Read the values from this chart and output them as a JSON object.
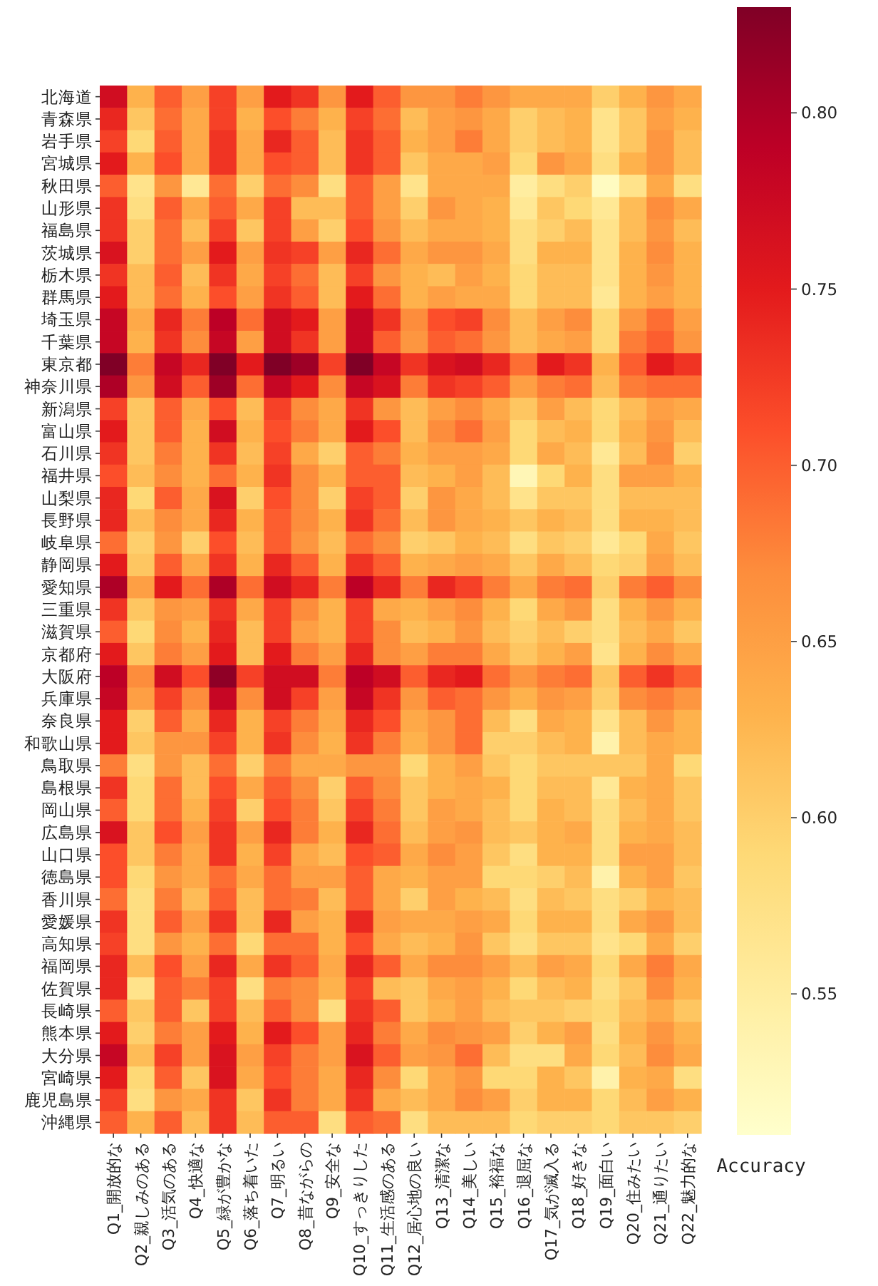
{
  "chart_data": {
    "type": "heatmap",
    "clabel": "Accuracy",
    "categories": [
      "Q1_開放的な",
      "Q2_親しみのある",
      "Q3_活気のある",
      "Q4_快適な",
      "Q5_緑が豊かな",
      "Q6_落ち着いた",
      "Q7_明るい",
      "Q8_昔ながらの",
      "Q9_安全な",
      "Q10_すっきりした",
      "Q11_生活感のある",
      "Q12_居心地の良い",
      "Q13_清潔な",
      "Q14_美しい",
      "Q15_裕福な",
      "Q16_退屈な",
      "Q17_気が滅入る",
      "Q18_好きな",
      "Q19_面白い",
      "Q20_住みたい",
      "Q21_通りたい",
      "Q22_魅力的な"
    ],
    "y_categories": [
      "北海道",
      "青森県",
      "岩手県",
      "宮城県",
      "秋田県",
      "山形県",
      "福島県",
      "茨城県",
      "栃木県",
      "群馬県",
      "埼玉県",
      "千葉県",
      "東京都",
      "神奈川県",
      "新潟県",
      "富山県",
      "石川県",
      "福井県",
      "山梨県",
      "長野県",
      "岐阜県",
      "静岡県",
      "愛知県",
      "三重県",
      "滋賀県",
      "京都府",
      "大阪府",
      "兵庫県",
      "奈良県",
      "和歌山県",
      "鳥取県",
      "島根県",
      "岡山県",
      "広島県",
      "山口県",
      "徳島県",
      "香川県",
      "愛媛県",
      "高知県",
      "福岡県",
      "佐賀県",
      "長崎県",
      "熊本県",
      "大分県",
      "宮崎県",
      "鹿児島県",
      "沖縄県"
    ],
    "cells": [
      [
        0.77,
        0.63,
        0.7,
        0.65,
        0.72,
        0.65,
        0.75,
        0.73,
        0.66,
        0.75,
        0.7,
        0.66,
        0.66,
        0.68,
        0.66,
        0.64,
        0.64,
        0.64,
        0.6,
        0.63,
        0.66,
        0.64
      ],
      [
        0.74,
        0.61,
        0.69,
        0.64,
        0.72,
        0.63,
        0.71,
        0.68,
        0.63,
        0.72,
        0.69,
        0.62,
        0.65,
        0.66,
        0.64,
        0.6,
        0.62,
        0.63,
        0.57,
        0.61,
        0.65,
        0.63
      ],
      [
        0.72,
        0.59,
        0.7,
        0.64,
        0.73,
        0.64,
        0.74,
        0.7,
        0.62,
        0.73,
        0.7,
        0.63,
        0.65,
        0.68,
        0.64,
        0.6,
        0.62,
        0.63,
        0.57,
        0.61,
        0.66,
        0.62
      ],
      [
        0.75,
        0.63,
        0.71,
        0.64,
        0.73,
        0.64,
        0.71,
        0.7,
        0.62,
        0.73,
        0.7,
        0.61,
        0.64,
        0.64,
        0.65,
        0.59,
        0.66,
        0.64,
        0.58,
        0.63,
        0.66,
        0.62
      ],
      [
        0.7,
        0.57,
        0.66,
        0.56,
        0.69,
        0.6,
        0.69,
        0.67,
        0.58,
        0.7,
        0.65,
        0.57,
        0.64,
        0.64,
        0.64,
        0.55,
        0.58,
        0.6,
        0.52,
        0.57,
        0.64,
        0.58
      ],
      [
        0.73,
        0.58,
        0.7,
        0.64,
        0.7,
        0.64,
        0.72,
        0.62,
        0.62,
        0.7,
        0.65,
        0.6,
        0.66,
        0.64,
        0.63,
        0.56,
        0.61,
        0.59,
        0.56,
        0.62,
        0.67,
        0.64
      ],
      [
        0.73,
        0.6,
        0.69,
        0.62,
        0.72,
        0.61,
        0.72,
        0.65,
        0.6,
        0.71,
        0.66,
        0.62,
        0.64,
        0.64,
        0.63,
        0.58,
        0.6,
        0.62,
        0.57,
        0.62,
        0.66,
        0.62
      ],
      [
        0.76,
        0.6,
        0.69,
        0.65,
        0.75,
        0.65,
        0.73,
        0.72,
        0.65,
        0.74,
        0.69,
        0.64,
        0.66,
        0.66,
        0.64,
        0.58,
        0.63,
        0.63,
        0.57,
        0.63,
        0.67,
        0.63
      ],
      [
        0.73,
        0.62,
        0.7,
        0.62,
        0.73,
        0.64,
        0.72,
        0.69,
        0.62,
        0.72,
        0.66,
        0.63,
        0.62,
        0.65,
        0.63,
        0.59,
        0.62,
        0.62,
        0.57,
        0.63,
        0.66,
        0.63
      ],
      [
        0.75,
        0.62,
        0.69,
        0.63,
        0.71,
        0.65,
        0.73,
        0.7,
        0.62,
        0.75,
        0.69,
        0.63,
        0.65,
        0.64,
        0.64,
        0.59,
        0.62,
        0.62,
        0.56,
        0.63,
        0.65,
        0.63
      ],
      [
        0.78,
        0.64,
        0.74,
        0.68,
        0.79,
        0.69,
        0.77,
        0.75,
        0.65,
        0.78,
        0.73,
        0.67,
        0.71,
        0.72,
        0.67,
        0.62,
        0.65,
        0.67,
        0.59,
        0.66,
        0.69,
        0.65
      ],
      [
        0.78,
        0.63,
        0.73,
        0.67,
        0.78,
        0.65,
        0.77,
        0.73,
        0.65,
        0.78,
        0.7,
        0.66,
        0.7,
        0.69,
        0.66,
        0.62,
        0.64,
        0.65,
        0.59,
        0.68,
        0.7,
        0.66
      ],
      [
        0.83,
        0.68,
        0.78,
        0.74,
        0.83,
        0.75,
        0.83,
        0.81,
        0.72,
        0.83,
        0.78,
        0.73,
        0.76,
        0.77,
        0.74,
        0.69,
        0.75,
        0.73,
        0.63,
        0.7,
        0.75,
        0.73
      ],
      [
        0.8,
        0.66,
        0.77,
        0.7,
        0.81,
        0.69,
        0.78,
        0.75,
        0.67,
        0.78,
        0.76,
        0.68,
        0.73,
        0.72,
        0.7,
        0.65,
        0.68,
        0.69,
        0.62,
        0.68,
        0.69,
        0.69
      ],
      [
        0.72,
        0.61,
        0.7,
        0.64,
        0.71,
        0.62,
        0.72,
        0.67,
        0.64,
        0.73,
        0.66,
        0.62,
        0.65,
        0.67,
        0.64,
        0.61,
        0.65,
        0.62,
        0.59,
        0.62,
        0.65,
        0.64
      ],
      [
        0.75,
        0.61,
        0.7,
        0.63,
        0.77,
        0.63,
        0.71,
        0.68,
        0.64,
        0.75,
        0.71,
        0.62,
        0.67,
        0.69,
        0.65,
        0.59,
        0.62,
        0.63,
        0.59,
        0.63,
        0.66,
        0.62
      ],
      [
        0.73,
        0.61,
        0.68,
        0.63,
        0.73,
        0.62,
        0.72,
        0.64,
        0.6,
        0.7,
        0.68,
        0.63,
        0.65,
        0.65,
        0.64,
        0.59,
        0.64,
        0.62,
        0.56,
        0.62,
        0.67,
        0.6
      ],
      [
        0.71,
        0.62,
        0.67,
        0.63,
        0.69,
        0.63,
        0.73,
        0.67,
        0.63,
        0.7,
        0.7,
        0.62,
        0.63,
        0.65,
        0.62,
        0.53,
        0.59,
        0.63,
        0.58,
        0.65,
        0.65,
        0.63
      ],
      [
        0.74,
        0.59,
        0.7,
        0.64,
        0.76,
        0.6,
        0.71,
        0.67,
        0.6,
        0.72,
        0.7,
        0.6,
        0.66,
        0.64,
        0.62,
        0.57,
        0.61,
        0.61,
        0.58,
        0.62,
        0.62,
        0.62
      ],
      [
        0.74,
        0.62,
        0.67,
        0.64,
        0.74,
        0.63,
        0.7,
        0.67,
        0.63,
        0.73,
        0.69,
        0.62,
        0.66,
        0.64,
        0.63,
        0.61,
        0.63,
        0.62,
        0.58,
        0.63,
        0.63,
        0.62
      ],
      [
        0.69,
        0.6,
        0.66,
        0.6,
        0.71,
        0.62,
        0.7,
        0.66,
        0.62,
        0.69,
        0.67,
        0.6,
        0.61,
        0.63,
        0.62,
        0.58,
        0.61,
        0.6,
        0.56,
        0.59,
        0.64,
        0.61
      ],
      [
        0.75,
        0.61,
        0.7,
        0.64,
        0.73,
        0.63,
        0.74,
        0.7,
        0.63,
        0.73,
        0.7,
        0.63,
        0.64,
        0.65,
        0.64,
        0.61,
        0.64,
        0.62,
        0.59,
        0.6,
        0.65,
        0.62
      ],
      [
        0.8,
        0.65,
        0.75,
        0.69,
        0.8,
        0.69,
        0.77,
        0.74,
        0.68,
        0.79,
        0.74,
        0.68,
        0.74,
        0.72,
        0.68,
        0.64,
        0.68,
        0.69,
        0.6,
        0.68,
        0.7,
        0.67
      ],
      [
        0.73,
        0.61,
        0.66,
        0.65,
        0.73,
        0.64,
        0.72,
        0.67,
        0.63,
        0.72,
        0.64,
        0.63,
        0.65,
        0.67,
        0.63,
        0.59,
        0.64,
        0.66,
        0.58,
        0.63,
        0.66,
        0.63
      ],
      [
        0.7,
        0.59,
        0.67,
        0.63,
        0.74,
        0.62,
        0.72,
        0.65,
        0.63,
        0.72,
        0.67,
        0.62,
        0.63,
        0.66,
        0.62,
        0.6,
        0.62,
        0.6,
        0.58,
        0.62,
        0.64,
        0.61
      ],
      [
        0.75,
        0.61,
        0.68,
        0.65,
        0.75,
        0.62,
        0.75,
        0.68,
        0.65,
        0.74,
        0.67,
        0.65,
        0.68,
        0.68,
        0.64,
        0.61,
        0.63,
        0.65,
        0.57,
        0.63,
        0.67,
        0.64
      ],
      [
        0.79,
        0.67,
        0.77,
        0.71,
        0.82,
        0.72,
        0.77,
        0.77,
        0.68,
        0.79,
        0.77,
        0.7,
        0.74,
        0.75,
        0.69,
        0.66,
        0.68,
        0.69,
        0.61,
        0.7,
        0.73,
        0.7
      ],
      [
        0.78,
        0.65,
        0.72,
        0.67,
        0.78,
        0.67,
        0.77,
        0.72,
        0.65,
        0.78,
        0.73,
        0.66,
        0.7,
        0.69,
        0.66,
        0.63,
        0.66,
        0.65,
        0.6,
        0.67,
        0.68,
        0.66
      ],
      [
        0.75,
        0.6,
        0.7,
        0.64,
        0.74,
        0.63,
        0.72,
        0.68,
        0.64,
        0.74,
        0.71,
        0.64,
        0.66,
        0.69,
        0.62,
        0.58,
        0.64,
        0.63,
        0.57,
        0.62,
        0.66,
        0.63
      ],
      [
        0.75,
        0.61,
        0.66,
        0.66,
        0.72,
        0.63,
        0.73,
        0.67,
        0.63,
        0.73,
        0.68,
        0.63,
        0.66,
        0.69,
        0.6,
        0.6,
        0.62,
        0.63,
        0.54,
        0.62,
        0.64,
        0.63
      ],
      [
        0.68,
        0.58,
        0.66,
        0.62,
        0.69,
        0.6,
        0.68,
        0.64,
        0.64,
        0.66,
        0.66,
        0.59,
        0.63,
        0.65,
        0.61,
        0.59,
        0.61,
        0.61,
        0.61,
        0.61,
        0.64,
        0.59
      ],
      [
        0.73,
        0.59,
        0.69,
        0.62,
        0.71,
        0.64,
        0.7,
        0.67,
        0.6,
        0.7,
        0.67,
        0.61,
        0.63,
        0.64,
        0.63,
        0.59,
        0.62,
        0.62,
        0.56,
        0.63,
        0.64,
        0.61
      ],
      [
        0.7,
        0.59,
        0.69,
        0.63,
        0.72,
        0.6,
        0.71,
        0.68,
        0.61,
        0.72,
        0.68,
        0.61,
        0.65,
        0.64,
        0.62,
        0.59,
        0.63,
        0.62,
        0.58,
        0.62,
        0.64,
        0.61
      ],
      [
        0.76,
        0.61,
        0.71,
        0.65,
        0.73,
        0.65,
        0.74,
        0.68,
        0.63,
        0.74,
        0.69,
        0.62,
        0.65,
        0.66,
        0.62,
        0.61,
        0.63,
        0.64,
        0.58,
        0.63,
        0.64,
        0.62
      ],
      [
        0.71,
        0.61,
        0.68,
        0.64,
        0.73,
        0.63,
        0.72,
        0.64,
        0.62,
        0.71,
        0.7,
        0.64,
        0.67,
        0.65,
        0.61,
        0.58,
        0.63,
        0.63,
        0.58,
        0.65,
        0.65,
        0.62
      ],
      [
        0.71,
        0.59,
        0.66,
        0.64,
        0.69,
        0.64,
        0.69,
        0.65,
        0.65,
        0.7,
        0.64,
        0.63,
        0.65,
        0.65,
        0.59,
        0.59,
        0.6,
        0.62,
        0.54,
        0.63,
        0.65,
        0.61
      ],
      [
        0.69,
        0.58,
        0.68,
        0.62,
        0.7,
        0.62,
        0.69,
        0.68,
        0.62,
        0.7,
        0.64,
        0.6,
        0.65,
        0.63,
        0.62,
        0.58,
        0.62,
        0.61,
        0.58,
        0.6,
        0.63,
        0.62
      ],
      [
        0.73,
        0.58,
        0.7,
        0.65,
        0.73,
        0.62,
        0.74,
        0.65,
        0.63,
        0.74,
        0.65,
        0.64,
        0.64,
        0.65,
        0.64,
        0.59,
        0.63,
        0.63,
        0.58,
        0.64,
        0.66,
        0.62
      ],
      [
        0.72,
        0.58,
        0.66,
        0.63,
        0.69,
        0.59,
        0.69,
        0.69,
        0.63,
        0.71,
        0.64,
        0.62,
        0.63,
        0.66,
        0.61,
        0.58,
        0.61,
        0.61,
        0.57,
        0.59,
        0.64,
        0.6
      ],
      [
        0.74,
        0.62,
        0.71,
        0.65,
        0.74,
        0.64,
        0.73,
        0.7,
        0.64,
        0.74,
        0.7,
        0.64,
        0.67,
        0.67,
        0.65,
        0.62,
        0.65,
        0.64,
        0.59,
        0.64,
        0.68,
        0.64
      ],
      [
        0.74,
        0.57,
        0.7,
        0.68,
        0.72,
        0.58,
        0.68,
        0.67,
        0.63,
        0.72,
        0.62,
        0.61,
        0.64,
        0.65,
        0.63,
        0.59,
        0.62,
        0.63,
        0.58,
        0.61,
        0.67,
        0.63
      ],
      [
        0.7,
        0.61,
        0.7,
        0.61,
        0.72,
        0.62,
        0.7,
        0.67,
        0.58,
        0.73,
        0.7,
        0.61,
        0.63,
        0.65,
        0.62,
        0.61,
        0.61,
        0.6,
        0.59,
        0.62,
        0.64,
        0.61
      ],
      [
        0.75,
        0.6,
        0.68,
        0.65,
        0.75,
        0.63,
        0.75,
        0.71,
        0.65,
        0.74,
        0.68,
        0.64,
        0.67,
        0.66,
        0.65,
        0.6,
        0.63,
        0.65,
        0.58,
        0.63,
        0.66,
        0.63
      ],
      [
        0.78,
        0.62,
        0.72,
        0.65,
        0.76,
        0.65,
        0.72,
        0.68,
        0.65,
        0.76,
        0.7,
        0.65,
        0.66,
        0.69,
        0.62,
        0.58,
        0.58,
        0.64,
        0.59,
        0.62,
        0.67,
        0.64
      ],
      [
        0.75,
        0.59,
        0.7,
        0.61,
        0.76,
        0.64,
        0.71,
        0.68,
        0.64,
        0.74,
        0.67,
        0.59,
        0.64,
        0.66,
        0.59,
        0.59,
        0.63,
        0.61,
        0.54,
        0.63,
        0.64,
        0.58
      ],
      [
        0.72,
        0.58,
        0.66,
        0.64,
        0.73,
        0.61,
        0.73,
        0.68,
        0.64,
        0.73,
        0.64,
        0.62,
        0.64,
        0.67,
        0.65,
        0.6,
        0.63,
        0.63,
        0.59,
        0.62,
        0.65,
        0.63
      ],
      [
        0.7,
        0.63,
        0.7,
        0.62,
        0.73,
        0.62,
        0.7,
        0.7,
        0.58,
        0.7,
        0.69,
        0.58,
        0.62,
        0.62,
        0.62,
        0.59,
        0.6,
        0.6,
        0.59,
        0.61,
        0.61,
        0.6
      ]
    ],
    "clim": [
      0.51,
      0.83
    ],
    "cticks": [
      {
        "value": 0.55,
        "label": "0.55"
      },
      {
        "value": 0.6,
        "label": "0.60"
      },
      {
        "value": 0.65,
        "label": "0.65"
      },
      {
        "value": 0.7,
        "label": "0.70"
      },
      {
        "value": 0.75,
        "label": "0.75"
      },
      {
        "value": 0.8,
        "label": "0.80"
      }
    ]
  }
}
